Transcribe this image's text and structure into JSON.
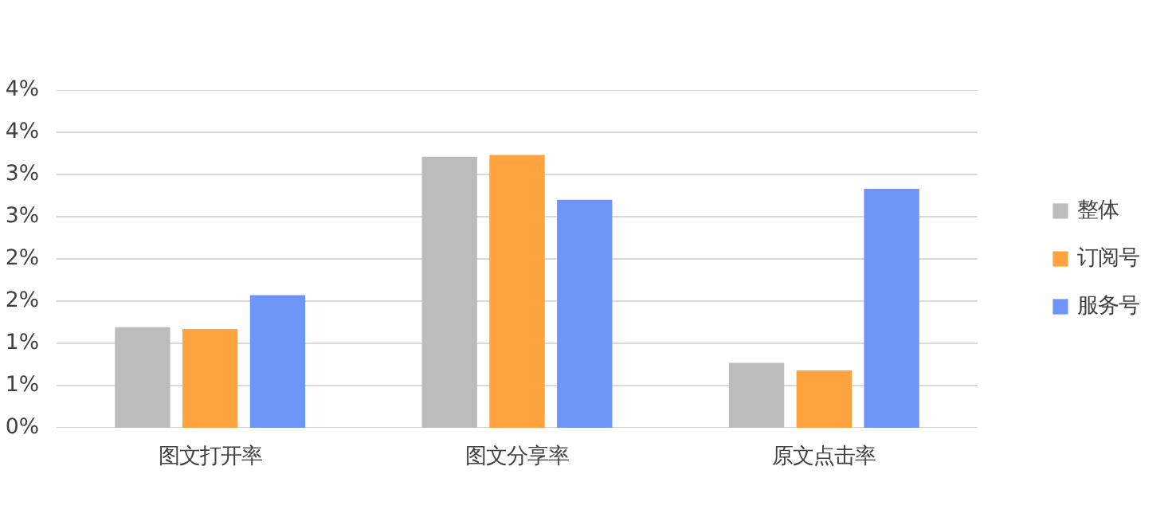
{
  "chart_data": {
    "type": "bar",
    "categories": [
      "图文打开率",
      "图文分享率",
      "原文点击率"
    ],
    "series": [
      {
        "name": "整体",
        "color": "#bcbcbc",
        "values": [
          1.19,
          3.21,
          0.77
        ]
      },
      {
        "name": "订阅号",
        "color": "#ffa33f",
        "values": [
          1.17,
          3.23,
          0.68
        ]
      },
      {
        "name": "服务号",
        "color": "#6d94f7",
        "values": [
          1.57,
          2.7,
          2.83
        ]
      }
    ],
    "ylim": [
      0,
      4
    ],
    "yticks": [
      {
        "value": 0,
        "label": "0%"
      },
      {
        "value": 0.5,
        "label": "1%"
      },
      {
        "value": 1,
        "label": "1%"
      },
      {
        "value": 1.5,
        "label": "2%"
      },
      {
        "value": 2,
        "label": "2%"
      },
      {
        "value": 2.5,
        "label": "3%"
      },
      {
        "value": 3,
        "label": "3%"
      },
      {
        "value": 3.5,
        "label": "4%"
      },
      {
        "value": 4,
        "label": "4%"
      }
    ],
    "grid": "y",
    "legend": "right"
  }
}
